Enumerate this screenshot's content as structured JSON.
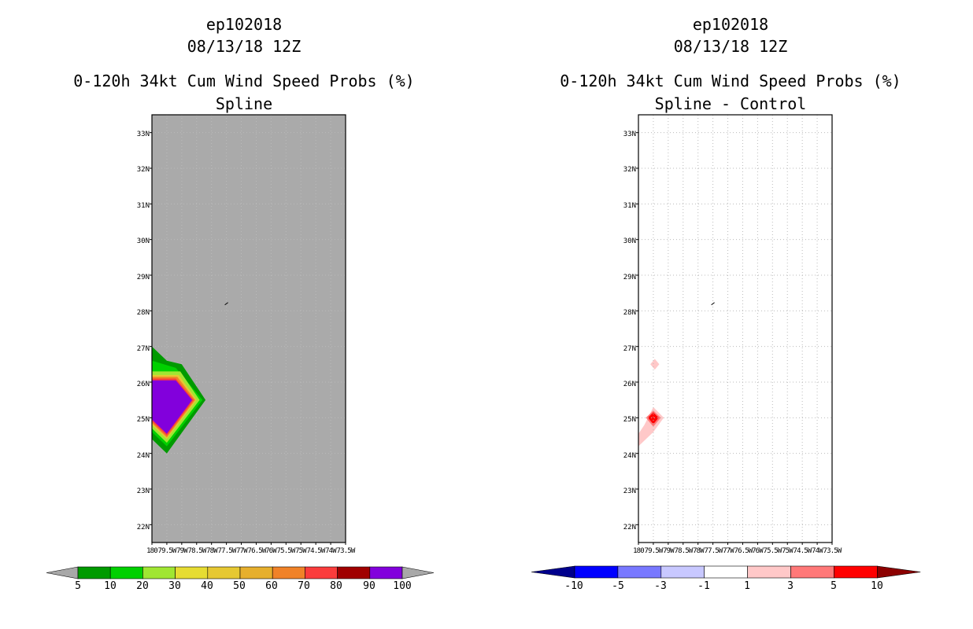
{
  "colors": {
    "background": "#ffffff",
    "land_gray": "#aaaaaa",
    "grid": "#bbbbbb"
  },
  "chart_data": [
    {
      "type": "heatmap",
      "storm_id": "ep102018",
      "date": "08/13/18 12Z",
      "title": "0-120h 34kt Cum Wind Speed Probs (%)",
      "subtitle": "Spline",
      "xlim": [
        80.0,
        73.5
      ],
      "ylim": [
        21.5,
        33.5
      ],
      "x_tick_labels": [
        "180",
        "79.5W",
        "79W",
        "78.5W",
        "78W",
        "77.5W",
        "77W",
        "76.5W",
        "76W",
        "75.5W",
        "75W",
        "74.5W",
        "74W",
        "73.5W"
      ],
      "y_ticks": [
        22,
        23,
        24,
        25,
        26,
        27,
        28,
        29,
        30,
        31,
        32,
        33
      ],
      "y_tick_labels": [
        "22N",
        "23N",
        "24N",
        "25N",
        "26N",
        "27N",
        "28N",
        "29N",
        "30N",
        "31N",
        "32N",
        "33N"
      ],
      "colorbar": {
        "type": "sequential",
        "tick_labels": [
          "5",
          "10",
          "20",
          "30",
          "40",
          "50",
          "60",
          "70",
          "80",
          "90",
          "100"
        ],
        "colors": [
          "#009a00",
          "#00d000",
          "#a0e632",
          "#e6dc32",
          "#e6c832",
          "#e6af2d",
          "#f08228",
          "#fa3c3c",
          "#a00000",
          "#8200dc"
        ],
        "left_arrow": "#a8a8a8",
        "right_arrow": "#a8a8a8"
      },
      "contours": [
        {
          "level": "5-10",
          "color": "#009a00",
          "points": [
            [
              80.0,
              27.0
            ],
            [
              79.5,
              26.6
            ],
            [
              79.0,
              26.5
            ],
            [
              78.2,
              25.5
            ],
            [
              79.5,
              24.0
            ],
            [
              80.0,
              24.4
            ]
          ]
        },
        {
          "level": "10-20",
          "color": "#00d000",
          "points": [
            [
              80.0,
              26.6
            ],
            [
              79.2,
              26.4
            ],
            [
              78.3,
              25.5
            ],
            [
              79.5,
              24.2
            ],
            [
              80.0,
              24.6
            ]
          ]
        },
        {
          "level": "20-30",
          "color": "#a0e632",
          "points": [
            [
              80.0,
              26.3
            ],
            [
              79.05,
              26.3
            ],
            [
              78.4,
              25.5
            ],
            [
              79.5,
              24.3
            ],
            [
              80.0,
              24.7
            ]
          ]
        },
        {
          "level": "40-50",
          "color": "#e6c832",
          "points": [
            [
              80.0,
              26.2
            ],
            [
              79.1,
              26.2
            ],
            [
              78.5,
              25.5
            ],
            [
              79.5,
              24.4
            ],
            [
              80.0,
              24.8
            ]
          ]
        },
        {
          "level": "60-70",
          "color": "#f08228",
          "points": [
            [
              80.0,
              26.15
            ],
            [
              79.15,
              26.15
            ],
            [
              78.55,
              25.5
            ],
            [
              79.5,
              24.45
            ],
            [
              80.0,
              24.85
            ]
          ]
        },
        {
          "level": "80-90",
          "color": "#fa3c3c",
          "points": [
            [
              80.0,
              26.1
            ],
            [
              79.2,
              26.1
            ],
            [
              78.6,
              25.5
            ],
            [
              79.5,
              24.5
            ],
            [
              80.0,
              24.9
            ]
          ]
        },
        {
          "level": "90-100",
          "color": "#8200dc",
          "points": [
            [
              80.0,
              26.05
            ],
            [
              79.2,
              26.05
            ],
            [
              78.65,
              25.5
            ],
            [
              79.5,
              24.55
            ],
            [
              80.0,
              24.95
            ]
          ]
        }
      ],
      "center_marker": {
        "lon": 77.5,
        "lat": 28.2
      }
    },
    {
      "type": "heatmap",
      "storm_id": "ep102018",
      "date": "08/13/18 12Z",
      "title": "0-120h 34kt Cum Wind Speed Probs (%)",
      "subtitle": "Spline - Control",
      "xlim": [
        80.0,
        73.5
      ],
      "ylim": [
        21.5,
        33.5
      ],
      "x_tick_labels": [
        "180",
        "79.5W",
        "79W",
        "78.5W",
        "78W",
        "77.5W",
        "77W",
        "76.5W",
        "76W",
        "75.5W",
        "75W",
        "74.5W",
        "74W",
        "73.5W"
      ],
      "y_ticks": [
        22,
        23,
        24,
        25,
        26,
        27,
        28,
        29,
        30,
        31,
        32,
        33
      ],
      "y_tick_labels": [
        "22N",
        "23N",
        "24N",
        "25N",
        "26N",
        "27N",
        "28N",
        "29N",
        "30N",
        "31N",
        "32N",
        "33N"
      ],
      "colorbar": {
        "type": "diverging",
        "tick_labels": [
          "-10",
          "-5",
          "-3",
          "-1",
          "1",
          "3",
          "5",
          "10"
        ],
        "colors": [
          "#0000ff",
          "#7878ff",
          "#c8c8ff",
          "#ffffff",
          "#ffc8c8",
          "#ff7878",
          "#ff0000"
        ],
        "left_arrow": "#00008c",
        "right_arrow": "#8c0000"
      },
      "contours": [
        {
          "level": "1-3",
          "color": "#ffc8c8",
          "points": [
            [
              79.45,
              26.65
            ],
            [
              79.3,
              26.5
            ],
            [
              79.45,
              26.35
            ],
            [
              79.6,
              26.5
            ]
          ]
        },
        {
          "level": "1-3",
          "color": "#ffc8c8",
          "points": [
            [
              79.5,
              25.3
            ],
            [
              79.15,
              25.0
            ],
            [
              79.5,
              24.6
            ],
            [
              80.0,
              24.2
            ],
            [
              80.0,
              24.55
            ],
            [
              79.8,
              24.8
            ]
          ]
        },
        {
          "level": "3-5",
          "color": "#ff7878",
          "points": [
            [
              79.5,
              25.2
            ],
            [
              79.25,
              25.0
            ],
            [
              79.5,
              24.75
            ],
            [
              79.75,
              25.0
            ]
          ]
        },
        {
          "level": "5-10",
          "color": "#ff0000",
          "points": [
            [
              79.5,
              25.15
            ],
            [
              79.32,
              25.0
            ],
            [
              79.5,
              24.82
            ],
            [
              79.68,
              25.0
            ]
          ]
        }
      ],
      "center_marker": {
        "lon": 77.5,
        "lat": 28.2
      }
    }
  ]
}
